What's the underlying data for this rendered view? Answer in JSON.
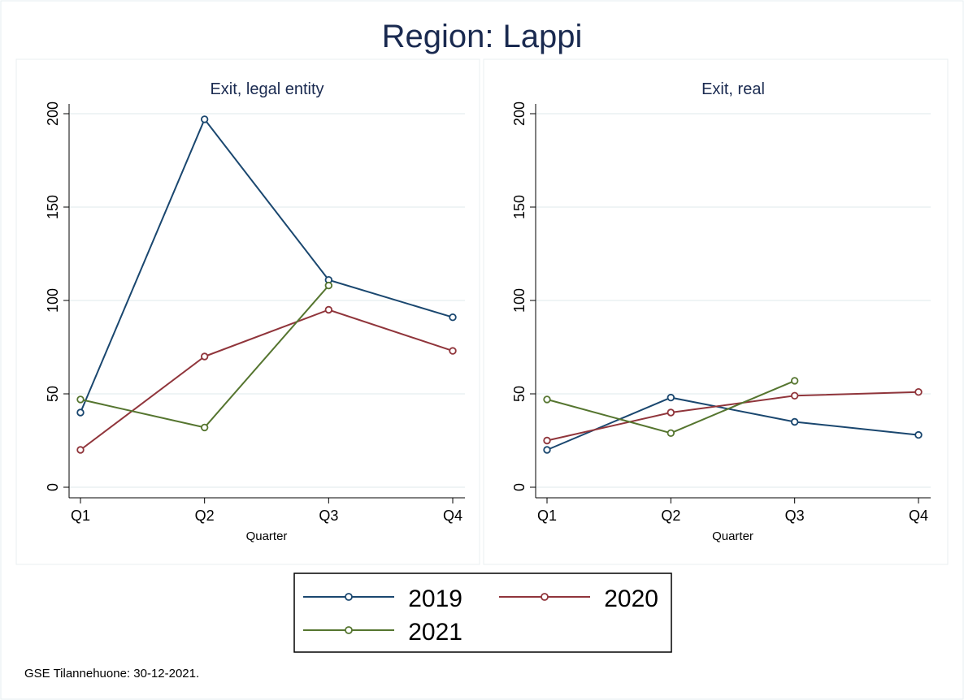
{
  "chart_data": {
    "type": "line",
    "title": "Region: Lappi",
    "note": "GSE Tilannehuone: 30-12-2021.",
    "xlabel": "Quarter",
    "categories": [
      "Q1",
      "Q2",
      "Q3",
      "Q4"
    ],
    "ylim": [
      0,
      200
    ],
    "yticks": [
      0,
      50,
      100,
      150,
      200
    ],
    "grid": true,
    "legend": {
      "position": "bottom",
      "entries": [
        "2019",
        "2020",
        "2021"
      ]
    },
    "colors": {
      "2019": "#1a476f",
      "2020": "#90353b",
      "2021": "#55752f"
    },
    "panels": [
      {
        "title": "Exit, legal entity",
        "series": [
          {
            "name": "2019",
            "values": [
              40,
              197,
              111,
              91
            ]
          },
          {
            "name": "2020",
            "values": [
              20,
              70,
              95,
              73
            ]
          },
          {
            "name": "2021",
            "values": [
              47,
              32,
              108,
              null
            ]
          }
        ]
      },
      {
        "title": "Exit, real",
        "series": [
          {
            "name": "2019",
            "values": [
              20,
              48,
              35,
              28
            ]
          },
          {
            "name": "2020",
            "values": [
              25,
              40,
              49,
              51
            ]
          },
          {
            "name": "2021",
            "values": [
              47,
              29,
              57,
              null
            ]
          }
        ]
      }
    ]
  }
}
